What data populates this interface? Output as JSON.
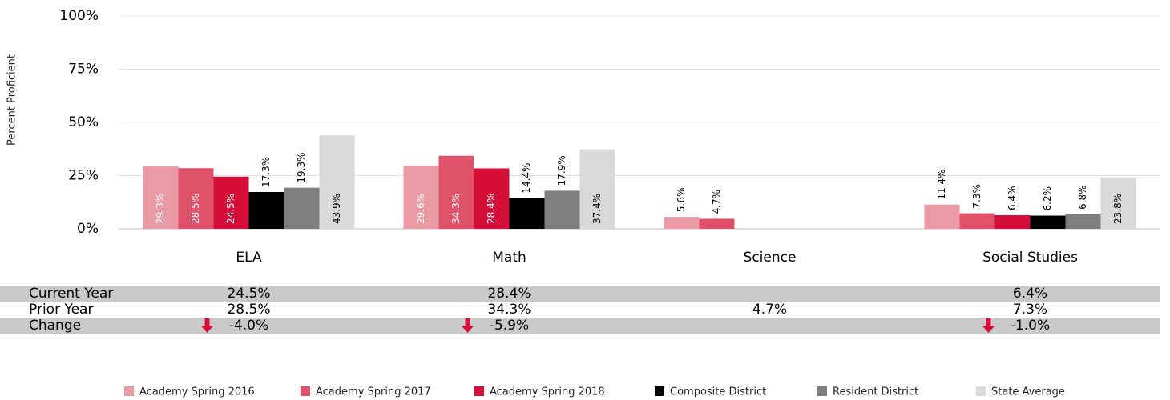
{
  "chart_data": {
    "type": "bar",
    "y_label": "Percent Proficient",
    "categories": [
      "ELA",
      "Math",
      "Science",
      "Social Studies"
    ],
    "series": [
      {
        "name": "Academy Spring 2016",
        "color": "#ea9aa5",
        "values": [
          29.3,
          29.6,
          5.6,
          11.4
        ],
        "value_labels": [
          "29.3%",
          "29.6%",
          "5.6%",
          "11.4%"
        ]
      },
      {
        "name": "Academy Spring 2017",
        "color": "#e0526a",
        "values": [
          28.5,
          34.3,
          4.7,
          7.3
        ],
        "value_labels": [
          "28.5%",
          "34.3%",
          "4.7%",
          "7.3%"
        ]
      },
      {
        "name": "Academy Spring 2018",
        "color": "#d50f3a",
        "values": [
          24.5,
          28.4,
          null,
          6.4
        ],
        "value_labels": [
          "24.5%",
          "28.4%",
          null,
          "6.4%"
        ]
      },
      {
        "name": "Composite District",
        "color": "#000000",
        "values": [
          17.3,
          14.4,
          null,
          6.2
        ],
        "value_labels": [
          "17.3%",
          "14.4%",
          null,
          "6.2%"
        ]
      },
      {
        "name": "Resident District",
        "color": "#7f7f7f",
        "values": [
          19.3,
          17.9,
          null,
          6.8
        ],
        "value_labels": [
          "19.3%",
          "17.9%",
          null,
          "6.8%"
        ]
      },
      {
        "name": "State Average",
        "color": "#d9d9d9",
        "values": [
          43.9,
          37.4,
          null,
          23.8
        ],
        "value_labels": [
          "43.9%",
          "37.4%",
          null,
          "23.8%"
        ]
      }
    ],
    "ylim": [
      0,
      100
    ],
    "yticks": [
      {
        "value": 0,
        "label": "0%"
      },
      {
        "value": 25,
        "label": "25%"
      },
      {
        "value": 50,
        "label": "50%"
      },
      {
        "value": 75,
        "label": "75%"
      },
      {
        "value": 100,
        "label": "100%"
      }
    ],
    "grid": true,
    "table": [
      {
        "label": "Current Year",
        "values": [
          "24.5%",
          "28.4%",
          null,
          "6.4%"
        ]
      },
      {
        "label": "Prior Year",
        "values": [
          "28.5%",
          "34.3%",
          "4.7%",
          "7.3%"
        ]
      },
      {
        "label": "Change",
        "values": [
          "-4.0%",
          "-5.9%",
          null,
          "-1.0%"
        ]
      }
    ]
  }
}
